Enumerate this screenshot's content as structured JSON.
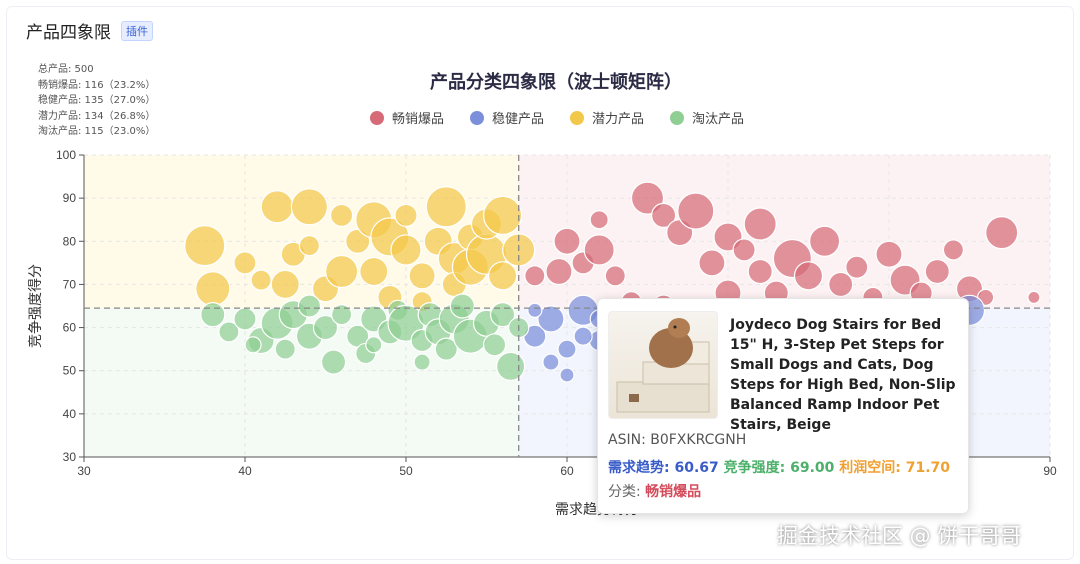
{
  "widget": {
    "title": "产品四象限",
    "badge": "插件"
  },
  "stats": [
    "总产品: 500",
    "畅销爆品: 116（23.2%）",
    "稳健产品: 135（27.0%）",
    "潜力产品: 134（26.8%）",
    "淘汰产品: 115（23.0%）"
  ],
  "chart_data": {
    "type": "scatter",
    "title": "产品分类四象限（波士顿矩阵）",
    "xlabel": "需求趋势得分",
    "ylabel": "竞争强度得分",
    "xlim": [
      30,
      90
    ],
    "ylim": [
      30,
      100
    ],
    "xticks": [
      30,
      40,
      50,
      60,
      70,
      80,
      90
    ],
    "yticks": [
      30,
      40,
      50,
      60,
      70,
      80,
      90,
      100
    ],
    "threshold_x": 57,
    "threshold_y": 64.5,
    "grid": true,
    "legend_position": "top-center",
    "series": [
      {
        "name": "畅销爆品",
        "color": "#d66b77",
        "points": [
          [
            59.5,
            73,
            13
          ],
          [
            61,
            75,
            11
          ],
          [
            62,
            78,
            15
          ],
          [
            63,
            72,
            10
          ],
          [
            65,
            90,
            16
          ],
          [
            66,
            86,
            12
          ],
          [
            67,
            82,
            13
          ],
          [
            68,
            87,
            18
          ],
          [
            69,
            75,
            13
          ],
          [
            70,
            81,
            14
          ],
          [
            71,
            78,
            11
          ],
          [
            72,
            84,
            16
          ],
          [
            73,
            68,
            12
          ],
          [
            74,
            76,
            19
          ],
          [
            75,
            72,
            14
          ],
          [
            76,
            80,
            15
          ],
          [
            77,
            70,
            12
          ],
          [
            78,
            74,
            11
          ],
          [
            79,
            67,
            10
          ],
          [
            80,
            77,
            13
          ],
          [
            81,
            71,
            15
          ],
          [
            82,
            68,
            11
          ],
          [
            83,
            73,
            12
          ],
          [
            84,
            78,
            10
          ],
          [
            85,
            69,
            13
          ],
          [
            87,
            82,
            16
          ],
          [
            64,
            66,
            10
          ],
          [
            60,
            80,
            13
          ],
          [
            58,
            72,
            10
          ],
          [
            66,
            65,
            11
          ],
          [
            70,
            68,
            13
          ],
          [
            72,
            73,
            12
          ],
          [
            62,
            85,
            9
          ],
          [
            86,
            67,
            8
          ],
          [
            89,
            67,
            6
          ]
        ]
      },
      {
        "name": "稳健产品",
        "color": "#7b8fdb",
        "points": [
          [
            58,
            58,
            11
          ],
          [
            59,
            62,
            13
          ],
          [
            60,
            55,
            9
          ],
          [
            61,
            64,
            15
          ],
          [
            62,
            57,
            10
          ],
          [
            63,
            47,
            18
          ],
          [
            64,
            60,
            9
          ],
          [
            65,
            58,
            11
          ],
          [
            66,
            63,
            13
          ],
          [
            67,
            56,
            9
          ],
          [
            68,
            61,
            11
          ],
          [
            69,
            57,
            10
          ],
          [
            70,
            63,
            12
          ],
          [
            60,
            49,
            7
          ],
          [
            59,
            52,
            8
          ],
          [
            62,
            62,
            9
          ],
          [
            58,
            64,
            7
          ],
          [
            61,
            58,
            9
          ],
          [
            85,
            64,
            15
          ]
        ]
      },
      {
        "name": "潜力产品",
        "color": "#f2c84a",
        "points": [
          [
            37.5,
            79,
            20
          ],
          [
            38,
            69,
            17
          ],
          [
            40,
            75,
            11
          ],
          [
            42,
            88,
            16
          ],
          [
            42.5,
            70,
            14
          ],
          [
            43,
            77,
            12
          ],
          [
            44,
            88,
            18
          ],
          [
            44,
            79,
            10
          ],
          [
            45,
            69,
            13
          ],
          [
            46,
            73,
            16
          ],
          [
            47,
            80,
            12
          ],
          [
            48,
            85,
            18
          ],
          [
            48,
            73,
            14
          ],
          [
            49,
            81,
            19
          ],
          [
            49,
            67,
            12
          ],
          [
            50,
            78,
            15
          ],
          [
            50,
            86,
            11
          ],
          [
            51,
            72,
            13
          ],
          [
            52,
            80,
            14
          ],
          [
            52.5,
            88,
            20
          ],
          [
            53,
            76,
            16
          ],
          [
            53,
            70,
            12
          ],
          [
            54,
            81,
            13
          ],
          [
            54,
            74,
            18
          ],
          [
            55,
            77,
            20
          ],
          [
            55,
            84,
            15
          ],
          [
            56,
            72,
            14
          ],
          [
            56,
            86,
            19
          ],
          [
            57,
            78,
            16
          ],
          [
            46,
            86,
            11
          ],
          [
            41,
            71,
            10
          ],
          [
            51,
            66,
            10
          ]
        ]
      },
      {
        "name": "淘汰产品",
        "color": "#8fcf93",
        "points": [
          [
            38,
            63,
            12
          ],
          [
            39,
            59,
            10
          ],
          [
            40,
            62,
            11
          ],
          [
            41,
            57,
            13
          ],
          [
            42,
            61,
            16
          ],
          [
            42.5,
            55,
            10
          ],
          [
            43,
            63,
            14
          ],
          [
            44,
            58,
            13
          ],
          [
            44,
            65,
            11
          ],
          [
            45,
            60,
            12
          ],
          [
            45.5,
            52,
            12
          ],
          [
            46,
            63,
            10
          ],
          [
            47,
            58,
            11
          ],
          [
            47.5,
            54,
            10
          ],
          [
            48,
            62,
            13
          ],
          [
            49,
            59,
            12
          ],
          [
            49.5,
            64,
            10
          ],
          [
            50,
            61,
            18
          ],
          [
            51,
            57,
            11
          ],
          [
            51.5,
            63,
            12
          ],
          [
            52,
            59,
            13
          ],
          [
            52.5,
            55,
            11
          ],
          [
            53,
            62,
            15
          ],
          [
            53.5,
            65,
            12
          ],
          [
            54,
            58,
            17
          ],
          [
            55,
            61,
            13
          ],
          [
            55.5,
            56,
            11
          ],
          [
            56,
            63,
            12
          ],
          [
            56.5,
            51,
            14
          ],
          [
            57,
            60,
            10
          ],
          [
            40.5,
            56,
            8
          ],
          [
            48,
            56,
            8
          ],
          [
            51,
            52,
            8
          ]
        ]
      }
    ]
  },
  "tooltip": {
    "title": "Joydeco Dog Stairs for Bed 15\" H, 3-Step Pet Steps for Small Dogs and Cats, Dog Steps for High Bed, Non-Slip Balanced Ramp Indoor Pet Stairs, Beige",
    "asin": "ASIN: B0FXKRCGNH",
    "demand": "需求趋势: 60.67",
    "competition": "竞争强度: 69.00",
    "profit": "利润空间: 71.70",
    "category_label": "分类: ",
    "category": "畅销爆品",
    "demand_color": "#3a5cc9",
    "competition_color": "#4caf6a",
    "profit_color": "#f0a030"
  },
  "watermark": "掘金技术社区 @ 饼干哥哥"
}
